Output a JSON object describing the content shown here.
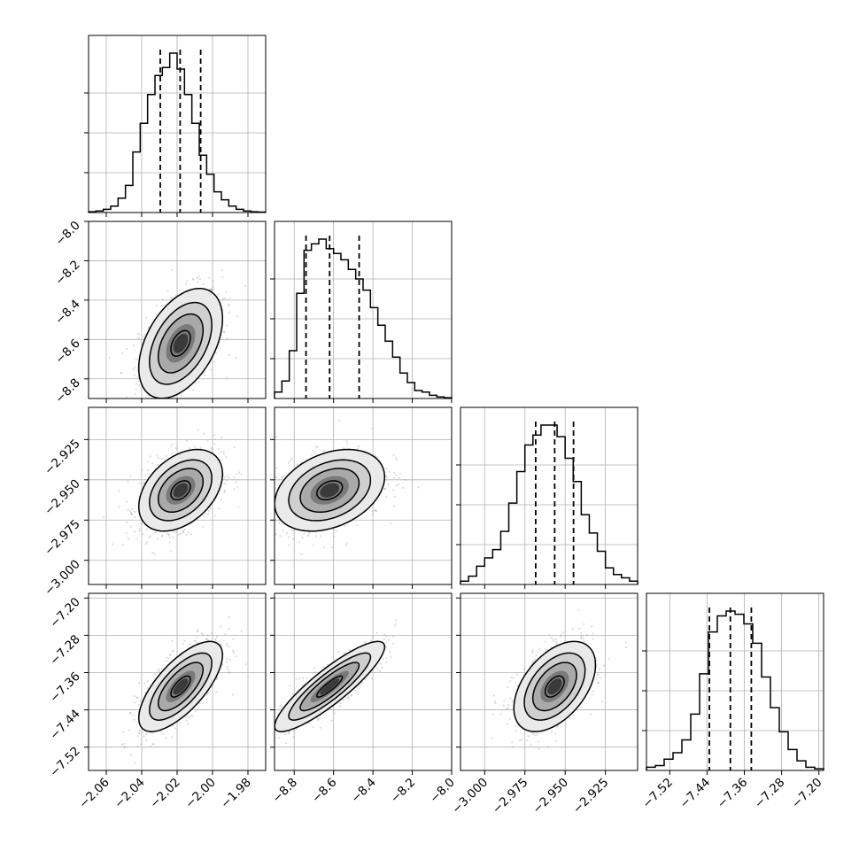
{
  "chart_data": {
    "type": "corner",
    "grid": true,
    "colors": {
      "points": "#9a9a9a",
      "lines": "#000000",
      "grid": "#b0b0b0"
    },
    "parameters": [
      {
        "range": [
          -2.07,
          -1.97
        ],
        "ticks": [
          -2.06,
          -2.04,
          -2.02,
          -2.0,
          -1.98
        ],
        "tick_labels": [
          "−2.06",
          "−2.04",
          "−2.02",
          "−2.00",
          "−1.98"
        ],
        "quantiles": [
          -2.0295,
          -2.0183,
          -2.0067
        ],
        "mean": -2.018,
        "sd": 0.011
      },
      {
        "range": [
          -8.9,
          -8.0
        ],
        "ticks": [
          -8.8,
          -8.6,
          -8.4,
          -8.2,
          -8.0
        ],
        "tick_labels": [
          "−8.8",
          "−8.6",
          "−8.4",
          "−8.2",
          "−8.0"
        ],
        "quantiles": [
          -8.74,
          -8.62,
          -8.47
        ],
        "mean": -8.62,
        "sd": 0.13
      },
      {
        "range": [
          -3.015,
          -2.905
        ],
        "ticks": [
          -3.0,
          -2.975,
          -2.95,
          -2.925
        ],
        "tick_labels": [
          "−3.000",
          "−2.975",
          "−2.950",
          "−2.925"
        ],
        "quantiles": [
          -2.9683,
          -2.9565,
          -2.9448
        ],
        "mean": -2.9565,
        "sd": 0.0118
      },
      {
        "range": [
          -7.57,
          -7.19
        ],
        "ticks": [
          -7.52,
          -7.44,
          -7.36,
          -7.28,
          -7.2
        ],
        "tick_labels": [
          "−7.52",
          "−7.44",
          "−7.36",
          "−7.28",
          "−7.20"
        ],
        "quantiles": [
          -7.435,
          -7.39,
          -7.345
        ],
        "mean": -7.39,
        "sd": 0.045
      }
    ],
    "marginals": [
      {
        "bin_counts": [
          0.005,
          0.01,
          0.02,
          0.04,
          0.09,
          0.17,
          0.38,
          0.56,
          0.74,
          0.86,
          0.91,
          1.0,
          0.9,
          0.74,
          0.56,
          0.36,
          0.24,
          0.13,
          0.08,
          0.04,
          0.02,
          0.01,
          0.005,
          0.003
        ]
      },
      {
        "bin_counts": [
          0.04,
          0.11,
          0.3,
          0.66,
          0.93,
          0.97,
          1.0,
          0.94,
          0.91,
          0.87,
          0.81,
          0.75,
          0.68,
          0.57,
          0.46,
          0.36,
          0.26,
          0.16,
          0.1,
          0.05,
          0.04,
          0.02,
          0.01,
          0.005
        ]
      },
      {
        "bin_counts": [
          0.02,
          0.05,
          0.11,
          0.16,
          0.21,
          0.32,
          0.49,
          0.68,
          0.84,
          0.9,
          0.96,
          0.96,
          0.89,
          0.76,
          0.62,
          0.42,
          0.31,
          0.2,
          0.1,
          0.06,
          0.04,
          0.02
        ]
      },
      {
        "bin_counts": [
          0.02,
          0.03,
          0.07,
          0.11,
          0.19,
          0.35,
          0.6,
          0.86,
          0.96,
          0.99,
          0.97,
          0.91,
          0.79,
          0.58,
          0.39,
          0.24,
          0.13,
          0.06,
          0.02,
          0.01
        ]
      }
    ],
    "correlations": {
      "1-0": 0.45,
      "2-0": 0.4,
      "2-1": 0.33,
      "3-0": 0.7,
      "3-1": 0.88,
      "3-2": 0.48
    }
  }
}
